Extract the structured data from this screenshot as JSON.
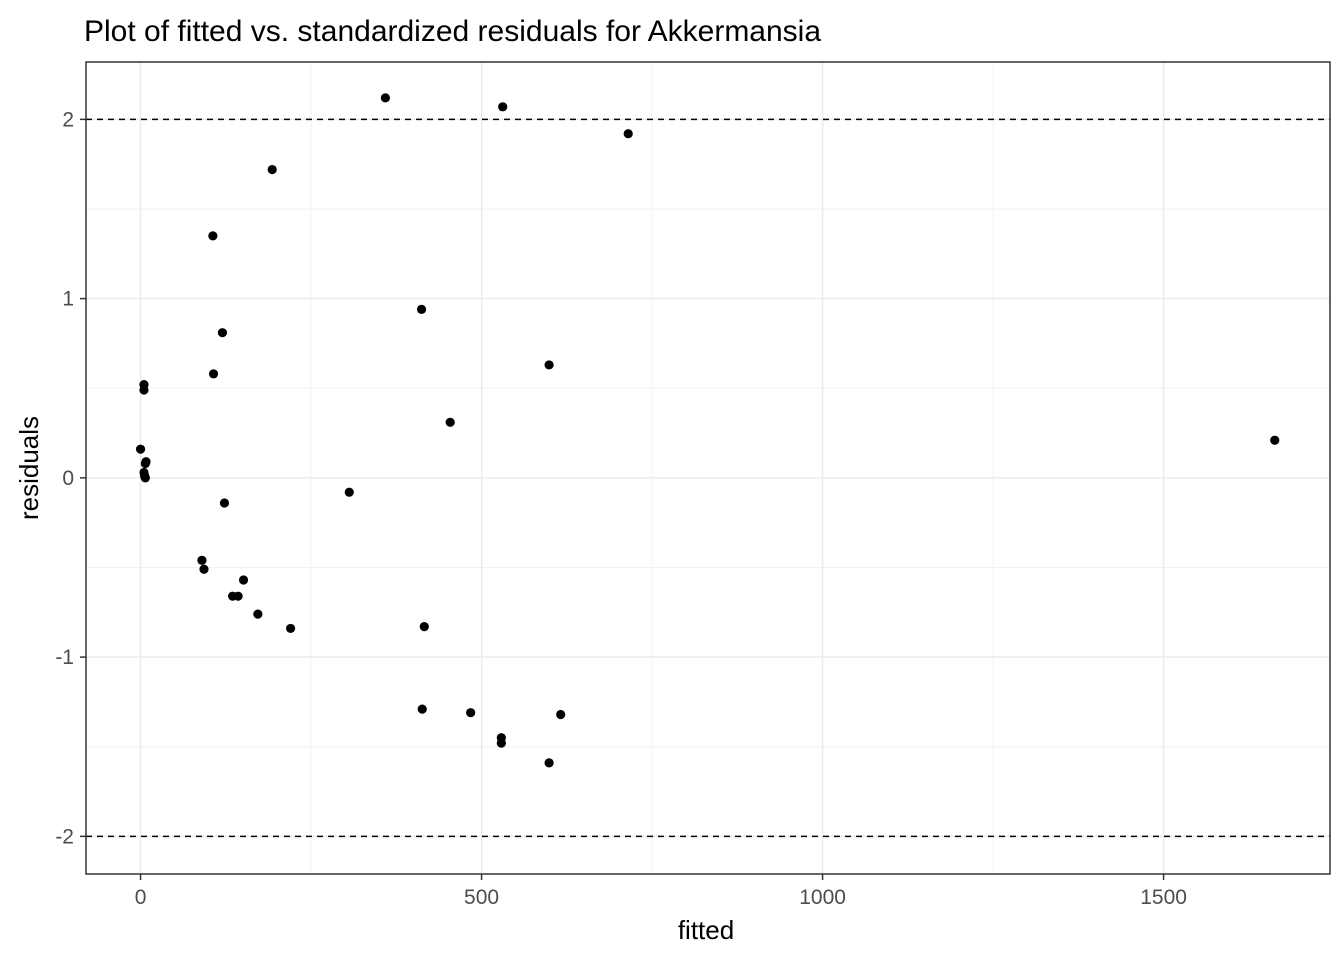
{
  "chart_data": {
    "type": "scatter",
    "title": "Plot of fitted vs. standardized residuals for Akkermansia",
    "xlabel": "fitted",
    "ylabel": "residuals",
    "xlim": [
      -80,
      1744
    ],
    "ylim": [
      -2.21,
      2.32
    ],
    "x_ticks": [
      0,
      500,
      1000,
      1500
    ],
    "x_tick_labels": [
      "0",
      "500",
      "1000",
      "1500"
    ],
    "y_ticks": [
      -2,
      -1,
      0,
      1,
      2
    ],
    "y_tick_labels": [
      "-2",
      "-1",
      "0",
      "1",
      "2"
    ],
    "grid": true,
    "reference_lines": [
      2,
      -2
    ],
    "point_color": "#000000",
    "points": [
      {
        "x": 359,
        "y": 2.12
      },
      {
        "x": 531,
        "y": 2.07
      },
      {
        "x": 715,
        "y": 1.92
      },
      {
        "x": 193,
        "y": 1.72
      },
      {
        "x": 106,
        "y": 1.35
      },
      {
        "x": 412,
        "y": 0.94
      },
      {
        "x": 120,
        "y": 0.81
      },
      {
        "x": 599,
        "y": 0.63
      },
      {
        "x": 107,
        "y": 0.58
      },
      {
        "x": 5,
        "y": 0.52
      },
      {
        "x": 5,
        "y": 0.49
      },
      {
        "x": 454,
        "y": 0.31
      },
      {
        "x": 1663,
        "y": 0.21
      },
      {
        "x": 0,
        "y": 0.16
      },
      {
        "x": 8,
        "y": 0.09
      },
      {
        "x": 7,
        "y": 0.08
      },
      {
        "x": 5,
        "y": 0.03
      },
      {
        "x": 6,
        "y": 0.01
      },
      {
        "x": 7,
        "y": 0.0
      },
      {
        "x": 306,
        "y": -0.08
      },
      {
        "x": 123,
        "y": -0.14
      },
      {
        "x": 90,
        "y": -0.46
      },
      {
        "x": 93,
        "y": -0.51
      },
      {
        "x": 151,
        "y": -0.57
      },
      {
        "x": 135,
        "y": -0.66
      },
      {
        "x": 143,
        "y": -0.66
      },
      {
        "x": 172,
        "y": -0.76
      },
      {
        "x": 220,
        "y": -0.84
      },
      {
        "x": 416,
        "y": -0.83
      },
      {
        "x": 413,
        "y": -1.29
      },
      {
        "x": 484,
        "y": -1.31
      },
      {
        "x": 616,
        "y": -1.32
      },
      {
        "x": 529,
        "y": -1.45
      },
      {
        "x": 529,
        "y": -1.48
      },
      {
        "x": 599,
        "y": -1.59
      }
    ]
  }
}
